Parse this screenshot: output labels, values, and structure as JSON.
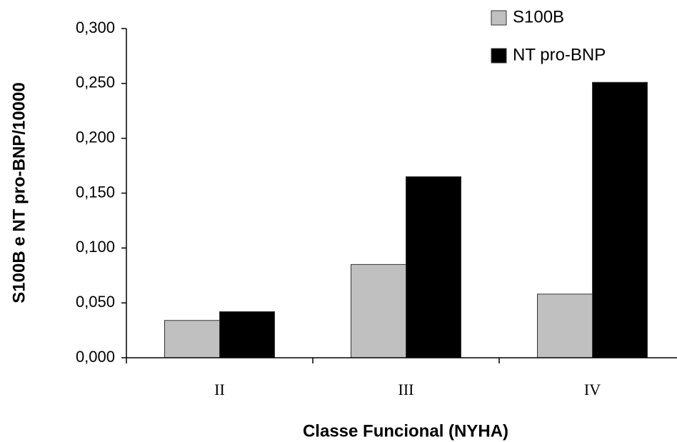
{
  "chart_data": {
    "type": "bar",
    "x_label": "Classe Funcional (NYHA)",
    "y_label": "S100B e NT pro-BNP/10000",
    "categories": [
      "II",
      "III",
      "IV"
    ],
    "series": [
      {
        "name": "S100B",
        "color": "#c0c0c0",
        "values": [
          0.034,
          0.085,
          0.058
        ]
      },
      {
        "name": "NT pro-BNP",
        "color": "#000000",
        "values": [
          0.042,
          0.165,
          0.251
        ]
      }
    ],
    "ylim": [
      0,
      0.3
    ],
    "yticks": [
      {
        "value": 0,
        "label": "0,000"
      },
      {
        "value": 0.05,
        "label": "0,050"
      },
      {
        "value": 0.1,
        "label": "0,100"
      },
      {
        "value": 0.15,
        "label": "0,150"
      },
      {
        "value": 0.2,
        "label": "0,200"
      },
      {
        "value": 0.25,
        "label": "0,250"
      },
      {
        "value": 0.3,
        "label": "0,300"
      }
    ],
    "legend": "top-right"
  }
}
